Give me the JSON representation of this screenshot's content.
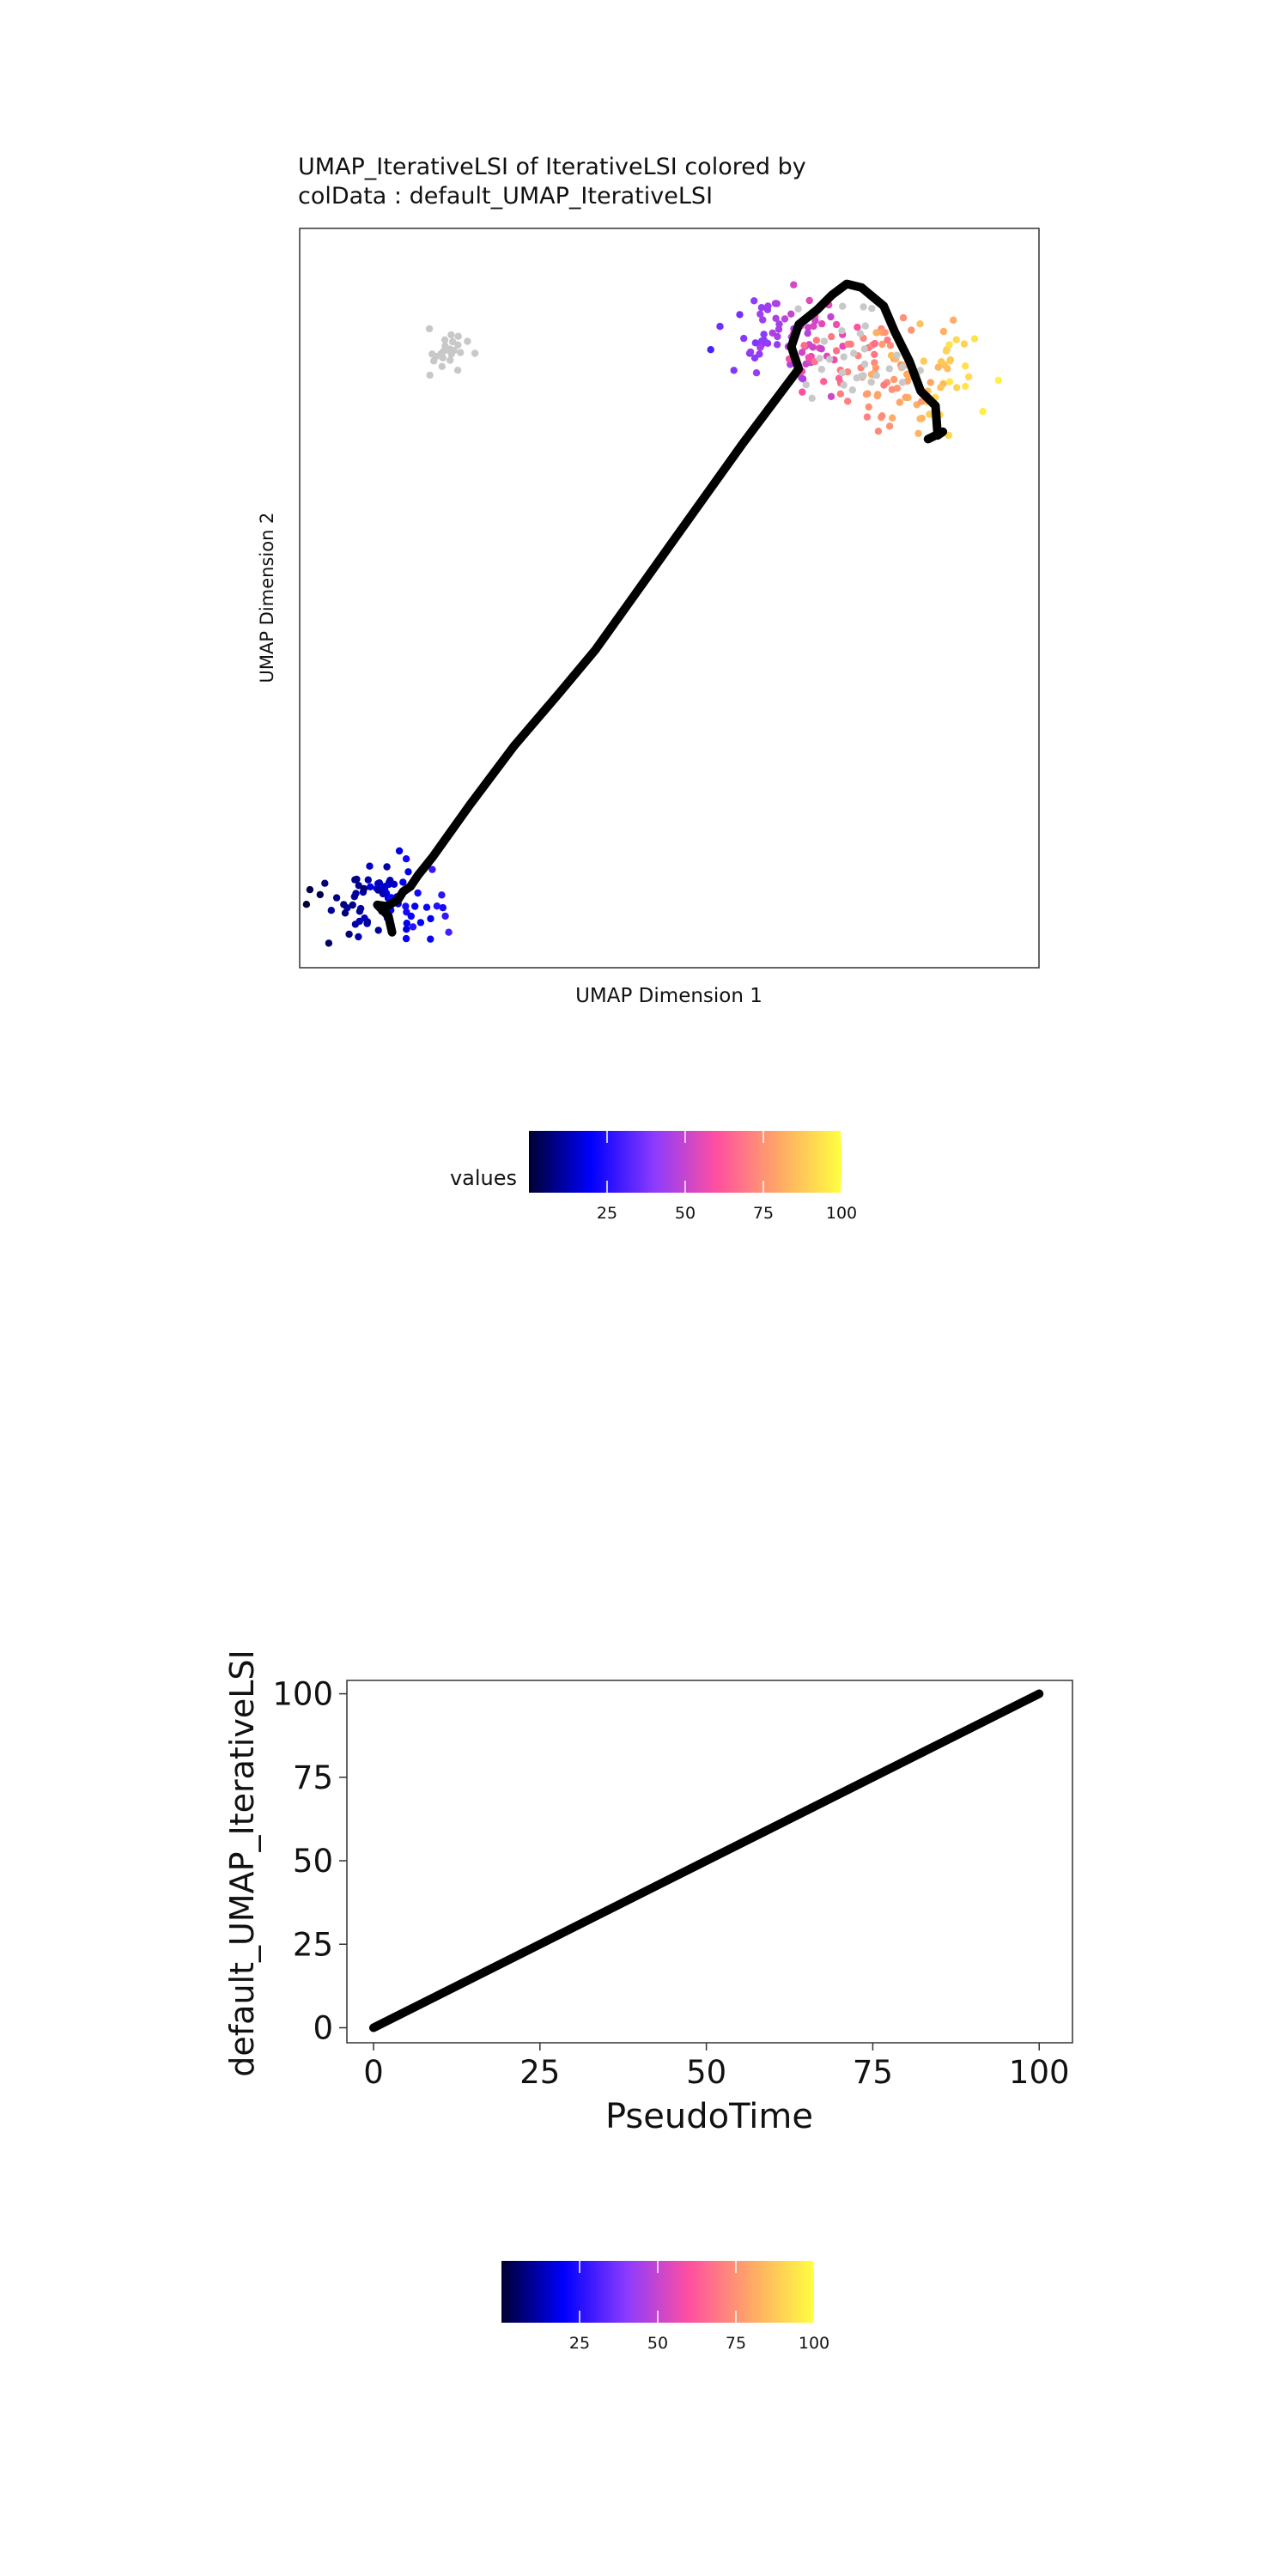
{
  "colors": {
    "gradient": [
      "#000033",
      "#0000ff",
      "#8b3bff",
      "#ff4fa0",
      "#ffa866",
      "#ffff40"
    ],
    "gray_points": "#c8c8c8",
    "trajectory": "#000000"
  },
  "chart_data": [
    {
      "type": "scatter",
      "title_line1": "UMAP_IterativeLSI of IterativeLSI  colored by",
      "title_line2": "colData :  default_UMAP_IterativeLSI",
      "xlabel": "UMAP Dimension 1",
      "ylabel": "UMAP Dimension 2",
      "xlim": [
        0,
        100
      ],
      "ylim": [
        0,
        100
      ],
      "grid": false,
      "colorscale": {
        "label": "values",
        "ticks": [
          "25",
          "50",
          "75",
          "100"
        ],
        "range": [
          0,
          100
        ]
      },
      "clusters": [
        {
          "center": [
            20,
            83
          ],
          "spread": [
            4,
            2.3
          ],
          "count": 26,
          "pseudotime": null
        },
        {
          "center": [
            11,
            9
          ],
          "spread": [
            6,
            3.8
          ],
          "count": 80,
          "pseudotime": [
            0,
            30
          ]
        },
        {
          "center": [
            66,
            85
          ],
          "spread": [
            6,
            4.5
          ],
          "count": 70,
          "pseudotime": [
            30,
            65
          ]
        },
        {
          "center": [
            79,
            80
          ],
          "spread": [
            9,
            5.5
          ],
          "count": 110,
          "pseudotime": [
            55,
            100
          ]
        },
        {
          "center": [
            74,
            82
          ],
          "spread": [
            7,
            5
          ],
          "count": 30,
          "pseudotime": null
        }
      ],
      "trajectory": [
        [
          12.5,
          4.8
        ],
        [
          12,
          7
        ],
        [
          10.5,
          8.5
        ],
        [
          11.8,
          8.3
        ],
        [
          13.3,
          9.2
        ],
        [
          14,
          10.3
        ],
        [
          15,
          11
        ],
        [
          16,
          12.5
        ],
        [
          18,
          15
        ],
        [
          23,
          22
        ],
        [
          29,
          30
        ],
        [
          35,
          37
        ],
        [
          40,
          43
        ],
        [
          45,
          50
        ],
        [
          50,
          57
        ],
        [
          55,
          64
        ],
        [
          60,
          71
        ],
        [
          66,
          79
        ],
        [
          67.5,
          81
        ],
        [
          66.5,
          84
        ],
        [
          67.5,
          87
        ],
        [
          70,
          89
        ],
        [
          72,
          91
        ],
        [
          74,
          92.5
        ],
        [
          76,
          92
        ],
        [
          79,
          89.5
        ],
        [
          80.5,
          86
        ],
        [
          82.5,
          82
        ],
        [
          84,
          78
        ],
        [
          86,
          76
        ],
        [
          86.3,
          72
        ],
        [
          87,
          72.5
        ],
        [
          85,
          71.5
        ]
      ]
    },
    {
      "type": "line",
      "xlabel": "PseudoTime",
      "ylabel": "default_UMAP_IterativeLSI",
      "xlim": [
        -4,
        105
      ],
      "ylim": [
        -4.5,
        104
      ],
      "xticks": [
        "0",
        "25",
        "50",
        "75",
        "100"
      ],
      "yticks": [
        "0",
        "25",
        "50",
        "75",
        "100"
      ],
      "x": [
        0,
        100
      ],
      "y": [
        0,
        100
      ],
      "colorscale": {
        "label": "",
        "ticks": [
          "25",
          "50",
          "75",
          "100"
        ],
        "range": [
          0,
          100
        ]
      }
    }
  ]
}
